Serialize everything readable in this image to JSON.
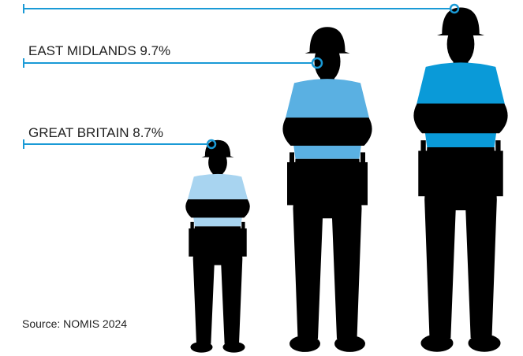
{
  "labels": [
    {
      "text": "EAST MIDLANDS 9.7%"
    },
    {
      "text": "GREAT BRITAIN 8.7%"
    }
  ],
  "source": "Source: NOMIS 2024"
}
